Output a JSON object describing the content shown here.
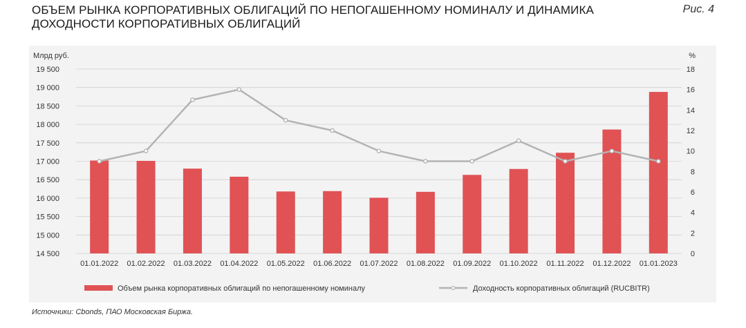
{
  "header": {
    "title": "ОБЪЕМ РЫНКА КОРПОРАТИВНЫХ ОБЛИГАЦИЙ ПО НЕПОГАШЕННОМУ НОМИНАЛУ И ДИНАМИКА ДОХОДНОСТИ КОРПОРАТИВНЫХ ОБЛИГАЦИЙ",
    "figure_label": "Рис. 4"
  },
  "source": "Источники: Cbonds, ПАО Московская Биржа.",
  "colors": {
    "bar": "#e05254",
    "line": "#b3b3b3",
    "panel": "#f3f3f3",
    "grid": "#d0d0d0"
  },
  "chart_data": {
    "type": "bar",
    "categories": [
      "01.01.2022",
      "01.02.2022",
      "01.03.2022",
      "01.04.2022",
      "01.05.2022",
      "01.06.2022",
      "01.07.2022",
      "01.08.2022",
      "01.09.2022",
      "01.10.2022",
      "01.11.2022",
      "01.12.2022",
      "01.01.2023"
    ],
    "series": [
      {
        "name": "Объем рынка корпоративных облигаций по непогашенному номиналу",
        "type": "bar",
        "axis": "left",
        "values": [
          17020,
          17010,
          16800,
          16580,
          16180,
          16190,
          16010,
          16170,
          16630,
          16790,
          17230,
          17860,
          18880
        ]
      },
      {
        "name": "Доходность корпоративных облигаций (RUCBITR)",
        "type": "line",
        "axis": "right",
        "values": [
          9,
          10,
          15,
          16,
          13,
          12,
          10,
          9,
          9,
          11,
          9,
          10,
          9
        ]
      }
    ],
    "y_left": {
      "label": "Млрд руб.",
      "ylim": [
        14500,
        19500
      ],
      "ticks": [
        14500,
        15000,
        15500,
        16000,
        16500,
        17000,
        17500,
        18000,
        18500,
        19000,
        19500
      ],
      "tick_labels": [
        "14 500",
        "15 000",
        "15 500",
        "16 000",
        "16 500",
        "17 000",
        "17 500",
        "18 000",
        "18 500",
        "19 000",
        "19 500"
      ]
    },
    "y_right": {
      "label": "%",
      "ylim": [
        0,
        18
      ],
      "ticks": [
        0,
        2,
        4,
        6,
        8,
        10,
        12,
        14,
        16,
        18
      ]
    },
    "grid": true,
    "legend": "bottom"
  }
}
